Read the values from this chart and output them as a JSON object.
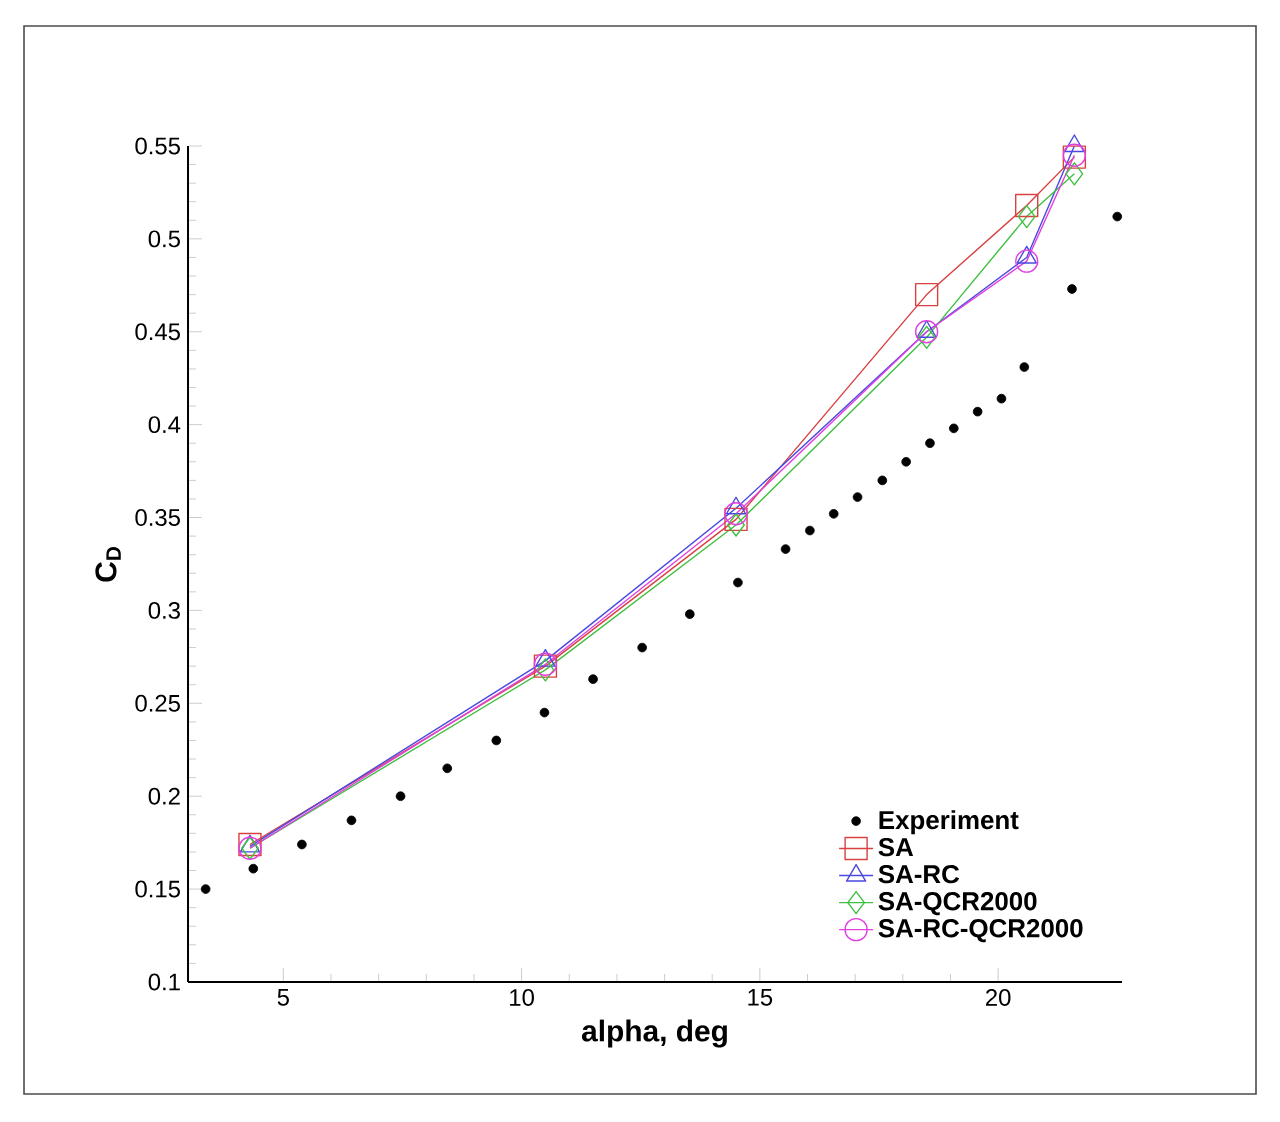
{
  "chart_data": {
    "type": "line",
    "xlabel": "alpha, deg",
    "ylabel": "C$_{D}$",
    "xlim": [
      3,
      22.6
    ],
    "xticks": [
      5,
      10,
      15,
      20
    ],
    "ylim": [
      0.1,
      0.55
    ],
    "yticks": [
      0.1,
      0.15,
      0.2,
      0.25,
      0.3,
      0.35,
      0.4,
      0.45,
      0.5,
      0.55
    ],
    "grid": false,
    "legend": "bottom right",
    "series": [
      {
        "name": "Experiment",
        "type": "scatter",
        "marker": "circle",
        "color": "#000000",
        "x": [
          3.37,
          4.37,
          5.39,
          6.43,
          7.46,
          8.44,
          9.47,
          10.48,
          11.5,
          12.53,
          13.53,
          14.54,
          15.54,
          16.05,
          16.55,
          17.05,
          17.57,
          18.07,
          18.57,
          19.07,
          19.57,
          20.07,
          20.55,
          21.55,
          22.5
        ],
        "values": [
          0.15,
          0.161,
          0.174,
          0.187,
          0.2,
          0.215,
          0.23,
          0.245,
          0.263,
          0.28,
          0.298,
          0.315,
          0.333,
          0.343,
          0.352,
          0.361,
          0.37,
          0.38,
          0.39,
          0.398,
          0.407,
          0.414,
          0.431,
          0.473,
          0.512
        ]
      },
      {
        "name": "SA",
        "marker": "square",
        "color": "#d94040",
        "x": [
          4.3,
          10.5,
          14.5,
          18.5,
          20.6,
          21.6
        ],
        "values": [
          0.174,
          0.27,
          0.349,
          0.47,
          0.518,
          0.544
        ]
      },
      {
        "name": "SA-RC",
        "marker": "triangle",
        "color": "#4a4ae0",
        "x": [
          4.3,
          10.5,
          14.5,
          18.5,
          20.6,
          21.6
        ],
        "values": [
          0.173,
          0.273,
          0.355,
          0.45,
          0.49,
          0.55
        ]
      },
      {
        "name": "SA-QCR2000",
        "marker": "diamond",
        "color": "#40c040",
        "x": [
          4.3,
          10.5,
          14.5,
          18.5,
          20.6,
          21.6
        ],
        "values": [
          0.172,
          0.268,
          0.346,
          0.447,
          0.512,
          0.535
        ]
      },
      {
        "name": "SA-RC-QCR2000",
        "marker": "circle",
        "color": "#e040e0",
        "x": [
          4.3,
          10.5,
          14.5,
          18.5,
          20.6,
          21.6
        ],
        "values": [
          0.172,
          0.271,
          0.352,
          0.45,
          0.488,
          0.545
        ]
      }
    ]
  }
}
